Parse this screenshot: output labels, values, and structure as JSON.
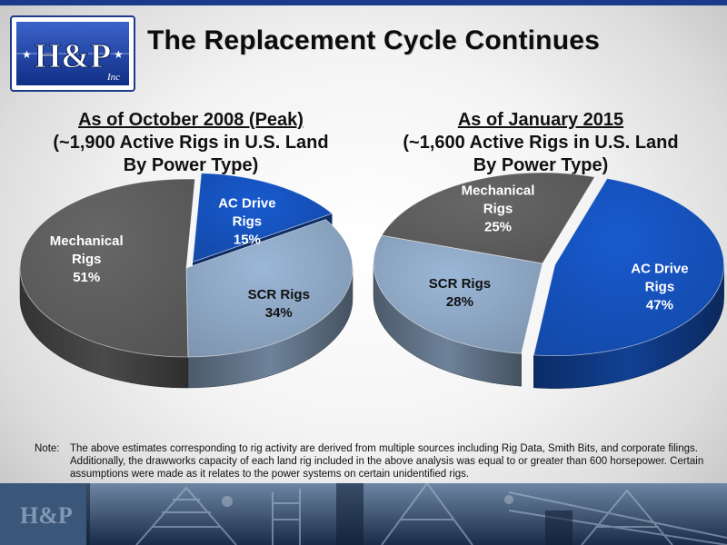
{
  "title": "The Replacement Cycle Continues",
  "logo": {
    "main": "H&P",
    "sub": "Inc"
  },
  "left_heading": {
    "line1": "As of October 2008 (Peak)",
    "line2": "(~1,900 Active Rigs in U.S. Land",
    "line3": "By Power Type)"
  },
  "right_heading": {
    "line1": "As of January 2015",
    "line2": "(~1,600 Active Rigs in U.S. Land",
    "line3": "By Power Type)"
  },
  "note": {
    "label": "Note:",
    "text": "The above estimates corresponding to rig activity are derived from multiple sources including Rig Data, Smith Bits, and corporate filings.  Additionally, the drawworks capacity of each land rig included in the above analysis was equal to or greater than 600 horsepower. Certain assumptions were made as it relates to the power systems on certain unidentified rigs."
  },
  "colors": {
    "ac_drive": "#1550b8",
    "scr": "#8aa3c0",
    "mechanical": "#5c5c5c",
    "title_bar": "#1b3a8a"
  },
  "chart_data": [
    {
      "type": "pie",
      "title": "As of October 2008 (Peak) (~1,900 Active Rigs in U.S. Land By Power Type)",
      "categories": [
        "AC Drive Rigs",
        "SCR Rigs",
        "Mechanical Rigs"
      ],
      "values": [
        15,
        34,
        51
      ],
      "labels": [
        {
          "name1": "AC Drive",
          "name2": "Rigs",
          "pct": "15%"
        },
        {
          "name1": "SCR Rigs",
          "name2": "",
          "pct": "34%"
        },
        {
          "name1": "Mechanical",
          "name2": "Rigs",
          "pct": "51%"
        }
      ],
      "colors": [
        "#1550b8",
        "#8aa3c0",
        "#5c5c5c"
      ],
      "exploded": "AC Drive Rigs"
    },
    {
      "type": "pie",
      "title": "As of January 2015 (~1,600 Active Rigs in U.S. Land By Power Type)",
      "categories": [
        "AC Drive Rigs",
        "SCR Rigs",
        "Mechanical Rigs"
      ],
      "values": [
        47,
        28,
        25
      ],
      "labels": [
        {
          "name1": "AC Drive",
          "name2": "Rigs",
          "pct": "47%"
        },
        {
          "name1": "SCR Rigs",
          "name2": "",
          "pct": "28%"
        },
        {
          "name1": "Mechanical",
          "name2": "Rigs",
          "pct": "25%"
        }
      ],
      "colors": [
        "#1550b8",
        "#8aa3c0",
        "#5c5c5c"
      ],
      "exploded": "AC Drive Rigs"
    }
  ]
}
